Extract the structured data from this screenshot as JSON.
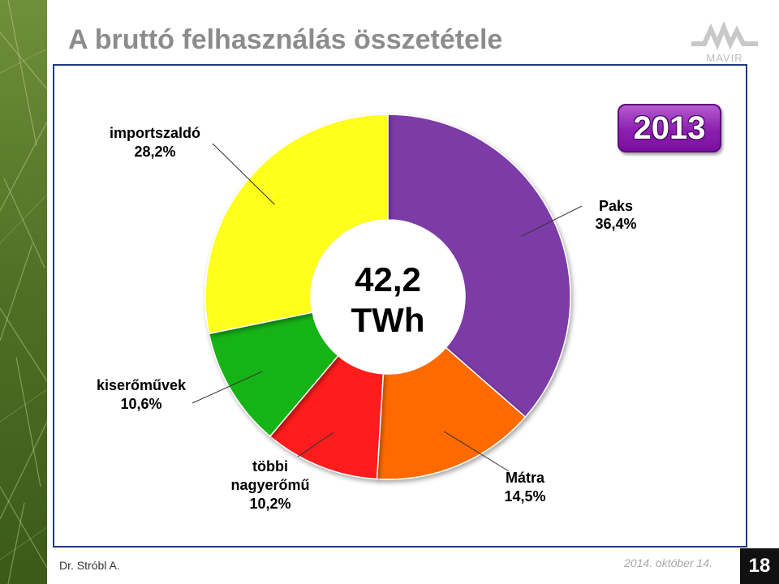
{
  "slide": {
    "title": "A bruttó felhasználás összetétele",
    "logo_text": "MAVIR",
    "year_badge": "2013",
    "author": "Dr. Stróbl A.",
    "date": "2014. október 14.",
    "page_number": "18"
  },
  "chart_data": {
    "type": "pie",
    "variant": "donut",
    "center_label": [
      "42,2",
      "TWh"
    ],
    "slices": [
      {
        "name": "Paks",
        "value_label": "36,4%",
        "value": 36.4,
        "color": "#7b3aa6"
      },
      {
        "name": "Mátra",
        "value_label": "14,5%",
        "value": 14.5,
        "color": "#ff6a00"
      },
      {
        "name_lines": [
          "többi",
          "nagyerőmű"
        ],
        "value_label": "10,2%",
        "value": 10.2,
        "color": "#ff1a1a"
      },
      {
        "name": "kiserőművek",
        "value_label": "10,6%",
        "value": 10.6,
        "color": "#17b317"
      },
      {
        "name": "importszaldó",
        "value_label": "28,2%",
        "value": 28.2,
        "color": "#ffff1a"
      }
    ]
  },
  "colors": {
    "title": "#8c8c8c",
    "frame_border": "#1f3a7a",
    "badge": "#8d1fb0",
    "sidebar": "#5a7a2a"
  }
}
